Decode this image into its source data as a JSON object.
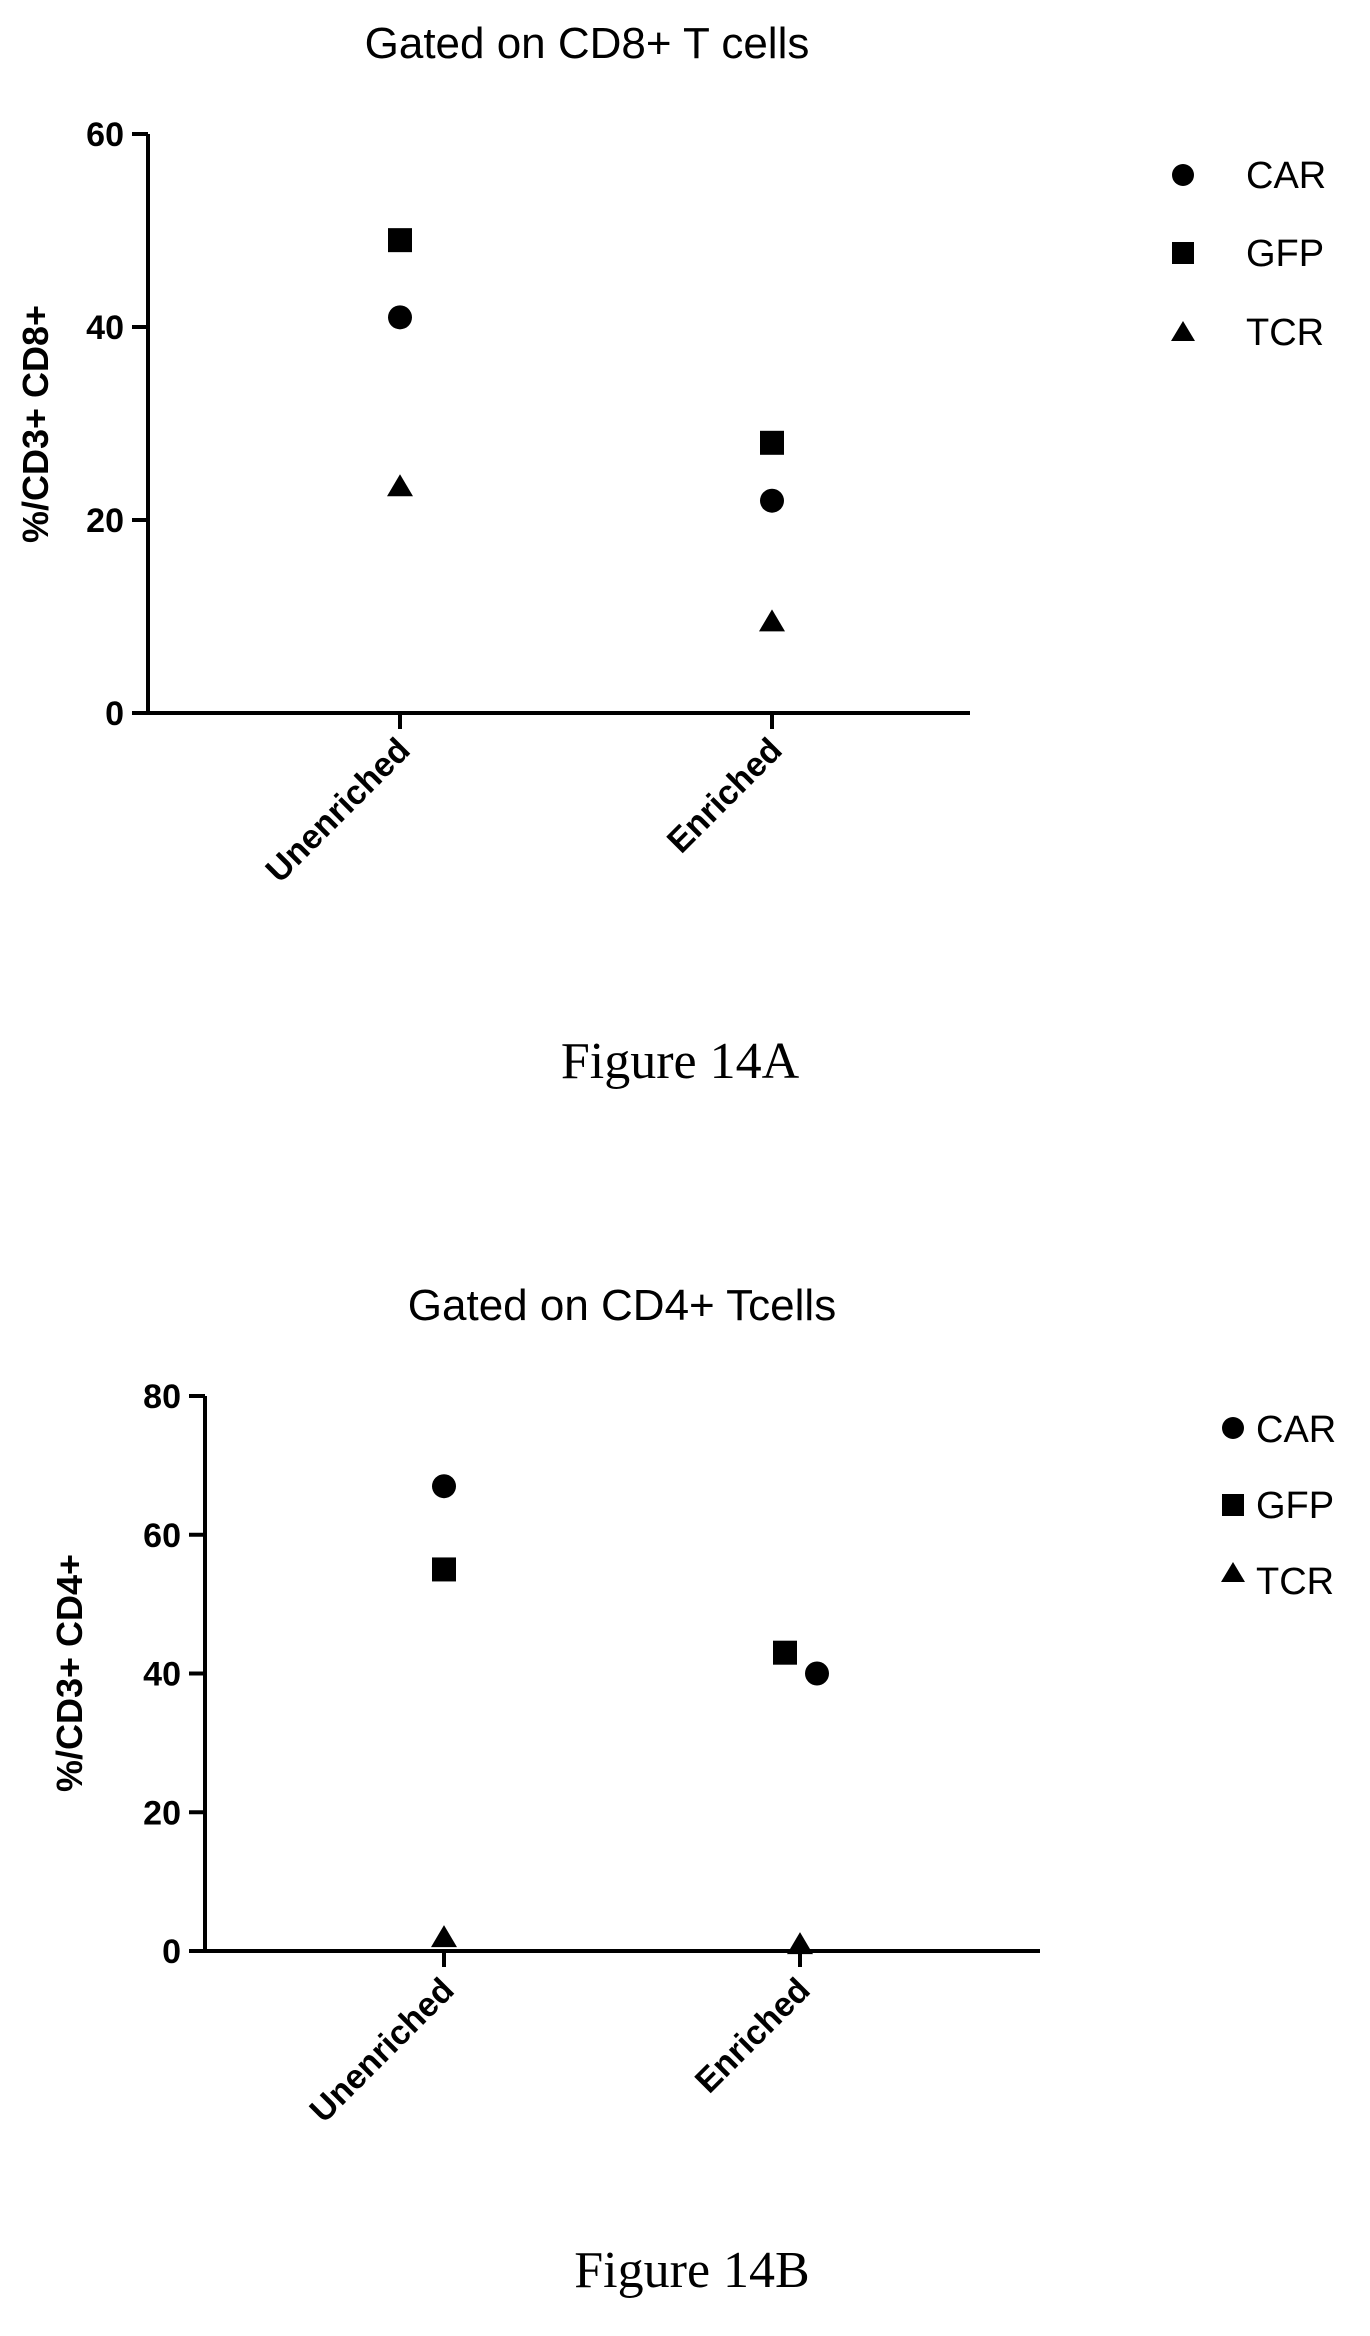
{
  "chart_data": [
    {
      "type": "scatter",
      "title": "Gated on CD8+ T cells",
      "xlabel": "",
      "ylabel": "%/CD3+ CD8+",
      "categories": [
        "Unenriched",
        "Enriched"
      ],
      "ylim": [
        0,
        60
      ],
      "yticks": [
        "0",
        "20",
        "40",
        "60"
      ],
      "legend_position": "right",
      "series": [
        {
          "name": "CAR",
          "marker": "circle",
          "values": [
            41,
            22
          ]
        },
        {
          "name": "GFP",
          "marker": "square",
          "values": [
            49,
            28
          ]
        },
        {
          "name": "TCR",
          "marker": "triangle",
          "values": [
            23.5,
            9.5
          ]
        }
      ],
      "caption": "Figure 14A"
    },
    {
      "type": "scatter",
      "title": "Gated on CD4+ Tcells",
      "xlabel": "",
      "ylabel": "%/CD3+ CD4+",
      "categories": [
        "Unenriched",
        "Enriched"
      ],
      "ylim": [
        0,
        80
      ],
      "yticks": [
        "0",
        "20",
        "40",
        "60",
        "80"
      ],
      "legend_position": "right",
      "series": [
        {
          "name": "CAR",
          "marker": "circle",
          "values": [
            67,
            40
          ]
        },
        {
          "name": "GFP",
          "marker": "square",
          "values": [
            55,
            43
          ]
        },
        {
          "name": "TCR",
          "marker": "triangle",
          "values": [
            2,
            1
          ]
        }
      ],
      "caption": "Figure 14B"
    }
  ],
  "colors": {
    "marker": "#000000",
    "axis": "#000000"
  }
}
